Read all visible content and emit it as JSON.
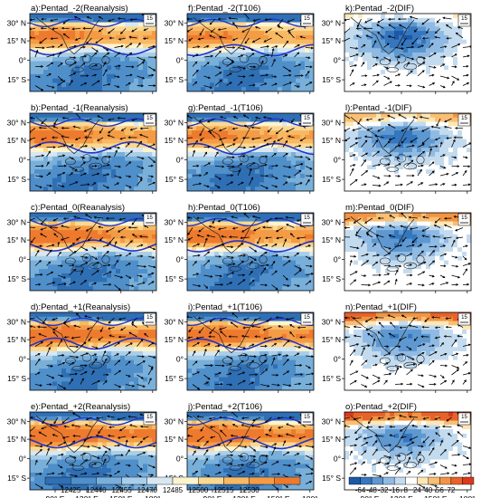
{
  "lat_labels": [
    "30° N",
    "15° N",
    "0°",
    "15° S"
  ],
  "lon_labels": [
    "90° E",
    "120° E",
    "150° E",
    "180°"
  ],
  "reference_vector": "15",
  "panels": [
    {
      "title": "a):Pentad_-2(Reanalysis)",
      "kind": "height",
      "warm": 0.45
    },
    {
      "title": "f):Pentad_-2(T106)",
      "kind": "height",
      "warm": 0.4
    },
    {
      "title": "k):Pentad_-2(DIF)",
      "kind": "dif",
      "warm": 0.1
    },
    {
      "title": "b):Pentad_-1(Reanalysis)",
      "kind": "height",
      "warm": 0.55
    },
    {
      "title": "g):Pentad_-1(T106)",
      "kind": "height",
      "warm": 0.45
    },
    {
      "title": "l):Pentad_-1(DIF)",
      "kind": "dif",
      "warm": 0.25
    },
    {
      "title": "c):Pentad_0(Reanalysis)",
      "kind": "height",
      "warm": 0.65
    },
    {
      "title": "h):Pentad_0(T106)",
      "kind": "height",
      "warm": 0.6
    },
    {
      "title": "m):Pentad_0(DIF)",
      "kind": "dif",
      "warm": 0.35
    },
    {
      "title": "d):Pentad_+1(Reanalysis)",
      "kind": "height",
      "warm": 0.75
    },
    {
      "title": "i):Pentad_+1(T106)",
      "kind": "height",
      "warm": 0.7
    },
    {
      "title": "n):Pentad_+1(DIF)",
      "kind": "dif",
      "warm": 0.4
    },
    {
      "title": "e):Pentad_+2(Reanalysis)",
      "kind": "height",
      "warm": 0.8
    },
    {
      "title": "j):Pentad_+2(T106)",
      "kind": "height",
      "warm": 0.75
    },
    {
      "title": "o):Pentad_+2(DIF)",
      "kind": "dif",
      "warm": 0.45
    }
  ],
  "colorbar_height": {
    "labels": [
      "12425",
      "12440",
      "12455",
      "12470",
      "12485",
      "12500",
      "12515",
      "12530"
    ],
    "colors": [
      "#2f6fb4",
      "#4f8fca",
      "#79b0da",
      "#a9cee9",
      "#d7e8f3",
      "#fdf3cf",
      "#fbd892",
      "#f8b964",
      "#f49b45",
      "#ee7a2e"
    ]
  },
  "colorbar_dif": {
    "labels": [
      "-64",
      "-48",
      "-32",
      "-16",
      "8",
      "24",
      "40",
      "56",
      "72"
    ],
    "colors": [
      "#1c58a6",
      "#3577bf",
      "#5e98d1",
      "#8fbae3",
      "#c3dbef",
      "#ffffff",
      "#fde7b6",
      "#f9bf74",
      "#f29444",
      "#e8622a",
      "#d83a1e"
    ]
  }
}
